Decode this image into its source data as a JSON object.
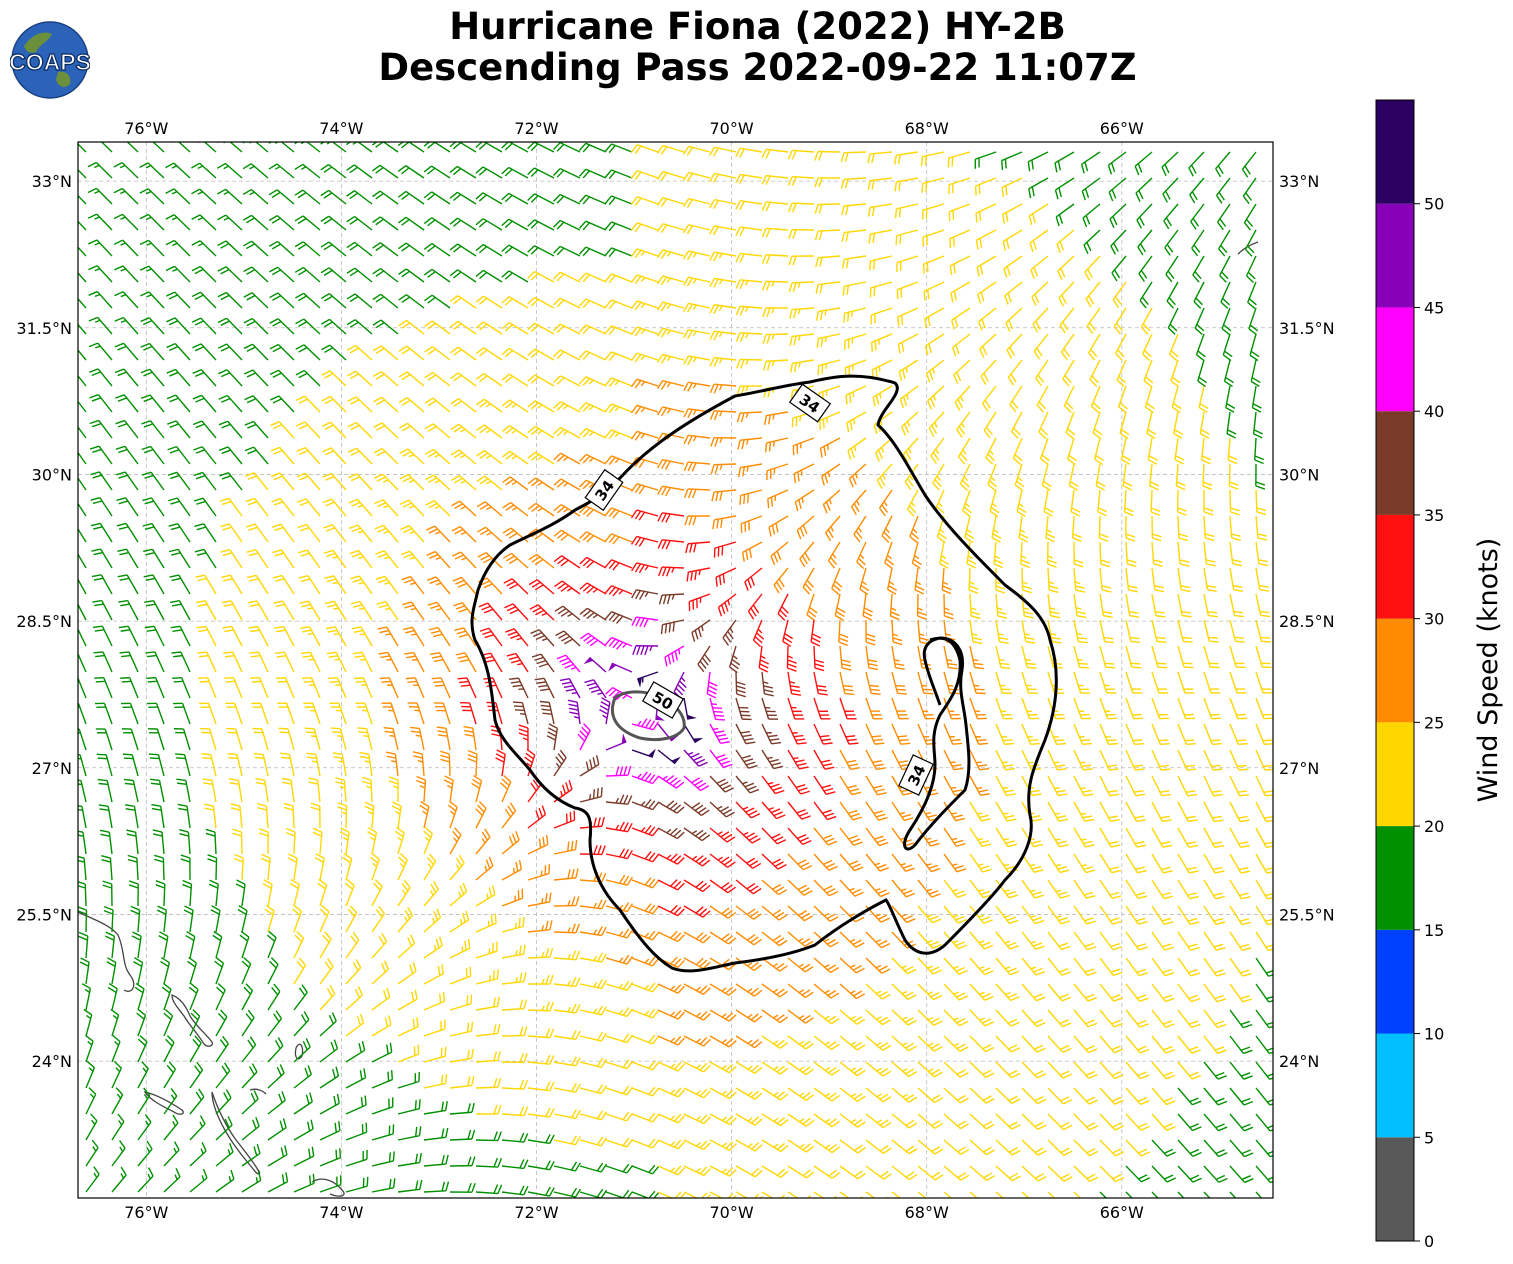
{
  "title": {
    "line1": "Hurricane Fiona (2022) HY-2B",
    "line2": "Descending Pass 2022-09-22 11:07Z"
  },
  "logo": {
    "text": "COAPS",
    "icon": "globe-logo-icon"
  },
  "map": {
    "lon_range": [
      -76.7,
      -64.45
    ],
    "lat_range": [
      22.6,
      33.4
    ],
    "lon_ticks": [
      "76°W",
      "74°W",
      "72°W",
      "70°W",
      "68°W",
      "66°W"
    ],
    "lat_ticks": [
      "33°N",
      "31.5°N",
      "30°N",
      "28.5°N",
      "27°N",
      "25.5°N",
      "24°N"
    ],
    "storm_center": {
      "lon": -71.0,
      "lat": 27.6
    },
    "contours": [
      {
        "label": "34",
        "color": "#000000"
      },
      {
        "label": "34",
        "color": "#000000"
      },
      {
        "label": "34",
        "color": "#000000"
      },
      {
        "label": "50",
        "color": "#555555"
      }
    ],
    "gridlines": true
  },
  "colorbar": {
    "label": "Wind Speed (knots)",
    "ticks": [
      "0",
      "5",
      "10",
      "15",
      "20",
      "25",
      "30",
      "35",
      "40",
      "45",
      "50"
    ],
    "bins": [
      {
        "min": 0,
        "max": 5,
        "color": "#595959"
      },
      {
        "min": 5,
        "max": 10,
        "color": "#00bfff"
      },
      {
        "min": 10,
        "max": 15,
        "color": "#0040ff"
      },
      {
        "min": 15,
        "max": 20,
        "color": "#009000"
      },
      {
        "min": 20,
        "max": 25,
        "color": "#ffd700"
      },
      {
        "min": 25,
        "max": 30,
        "color": "#ff8c00"
      },
      {
        "min": 30,
        "max": 35,
        "color": "#ff1010"
      },
      {
        "min": 35,
        "max": 40,
        "color": "#7a3a28"
      },
      {
        "min": 40,
        "max": 45,
        "color": "#ff00ff"
      },
      {
        "min": 45,
        "max": 50,
        "color": "#8800b8"
      },
      {
        "min": 50,
        "max": 55,
        "color": "#2a0060"
      }
    ]
  }
}
